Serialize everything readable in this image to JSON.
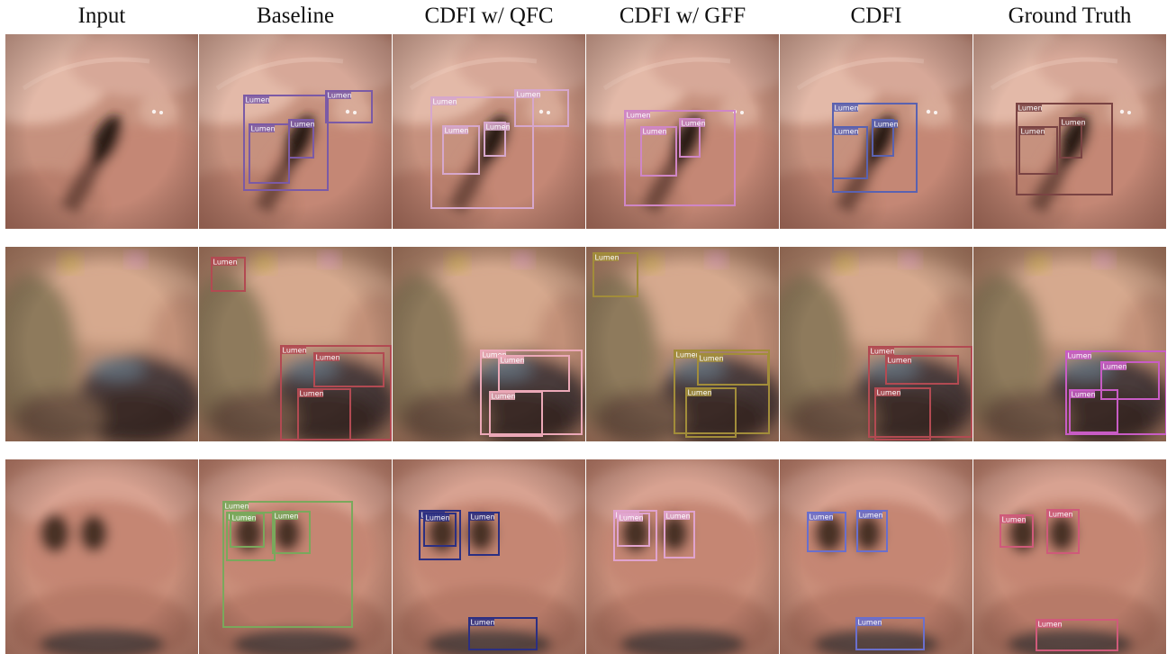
{
  "columns": [
    {
      "label": "Input"
    },
    {
      "label": "Baseline"
    },
    {
      "label": "CDFI w/ QFC"
    },
    {
      "label": "CDFI w/ GFF"
    },
    {
      "label": "CDFI"
    },
    {
      "label": "Ground Truth"
    }
  ],
  "box_label": "Lumen",
  "rows": [
    {
      "scene": "airway-oblique",
      "panels": [
        {
          "boxes": []
        },
        {
          "color": "#7b5aa6",
          "boxes": [
            [
              50,
              68,
              143,
              173
            ],
            [
              141,
              63,
              192,
              98
            ],
            [
              56,
              100,
              100,
              165
            ],
            [
              100,
              95,
              127,
              137
            ]
          ]
        },
        {
          "color": "#d6a7cc",
          "boxes": [
            [
              43,
              70,
              156,
              193
            ],
            [
              136,
              62,
              195,
              102
            ],
            [
              56,
              102,
              96,
              155
            ],
            [
              102,
              98,
              125,
              135
            ]
          ]
        },
        {
          "color": "#cf86c6",
          "boxes": [
            [
              43,
              85,
              165,
              190
            ],
            [
              61,
              103,
              100,
              157
            ],
            [
              104,
              94,
              126,
              136
            ]
          ]
        },
        {
          "color": "#5a62b0",
          "boxes": [
            [
              59,
              77,
              152,
              175
            ],
            [
              59,
              103,
              97,
              160
            ],
            [
              103,
              95,
              126,
              135
            ]
          ]
        },
        {
          "color": "#7a4343",
          "boxes": [
            [
              48,
              77,
              154,
              178
            ],
            [
              51,
              103,
              93,
              155
            ],
            [
              96,
              93,
              120,
              137
            ]
          ]
        }
      ]
    },
    {
      "scene": "airway-blurred",
      "panels": [
        {
          "boxes": []
        },
        {
          "color": "#b24a52",
          "boxes": [
            [
              14,
              12,
              51,
              49
            ],
            [
              91,
              110,
              213,
              214
            ],
            [
              128,
              118,
              205,
              155
            ],
            [
              110,
              158,
              168,
              214
            ]
          ]
        },
        {
          "color": "#eba8b7",
          "boxes": [
            [
              98,
              115,
              210,
              208
            ],
            [
              118,
              121,
              196,
              160
            ],
            [
              108,
              161,
              166,
              210
            ]
          ]
        },
        {
          "color": "#a28d3a",
          "boxes": [
            [
              8,
              7,
              57,
              55
            ],
            [
              98,
              115,
              203,
              207
            ],
            [
              124,
              119,
              202,
              153
            ],
            [
              111,
              157,
              166,
              211
            ]
          ]
        },
        {
          "color": "#b24a52",
          "boxes": [
            [
              99,
              111,
              213,
              211
            ],
            [
              118,
              121,
              198,
              152
            ],
            [
              106,
              157,
              167,
              214
            ]
          ]
        },
        {
          "color": "#c85cc5",
          "boxes": [
            [
              103,
              116,
              214,
              208
            ],
            [
              142,
              128,
              206,
              169
            ],
            [
              107,
              159,
              160,
              206
            ]
          ]
        }
      ]
    },
    {
      "scene": "trachea-frontal",
      "panels": [
        {
          "boxes": []
        },
        {
          "color": "#7aa85c",
          "boxes": [
            [
              27,
              47,
              170,
              186
            ],
            [
              31,
              59,
              84,
              112
            ],
            [
              35,
              60,
              72,
              97
            ],
            [
              82,
              58,
              123,
              104
            ]
          ]
        },
        {
          "color": "#2c2f82",
          "boxes": [
            [
              30,
              57,
              75,
              111
            ],
            [
              35,
              60,
              70,
              96
            ],
            [
              85,
              59,
              118,
              106
            ],
            [
              85,
              176,
              160,
              211
            ]
          ]
        },
        {
          "color": "#e0a3ce",
          "boxes": [
            [
              31,
              57,
              78,
              112
            ],
            [
              35,
              60,
              70,
              96
            ],
            [
              87,
              58,
              120,
              109
            ]
          ]
        },
        {
          "color": "#6a6fcc",
          "boxes": [
            [
              31,
              59,
              73,
              102
            ],
            [
              86,
              57,
              119,
              102
            ],
            [
              85,
              176,
              160,
              211
            ]
          ]
        },
        {
          "color": "#cf5a7a",
          "boxes": [
            [
              30,
              62,
              66,
              97
            ],
            [
              82,
              56,
              117,
              104
            ],
            [
              70,
              178,
              160,
              212
            ]
          ]
        }
      ]
    }
  ]
}
